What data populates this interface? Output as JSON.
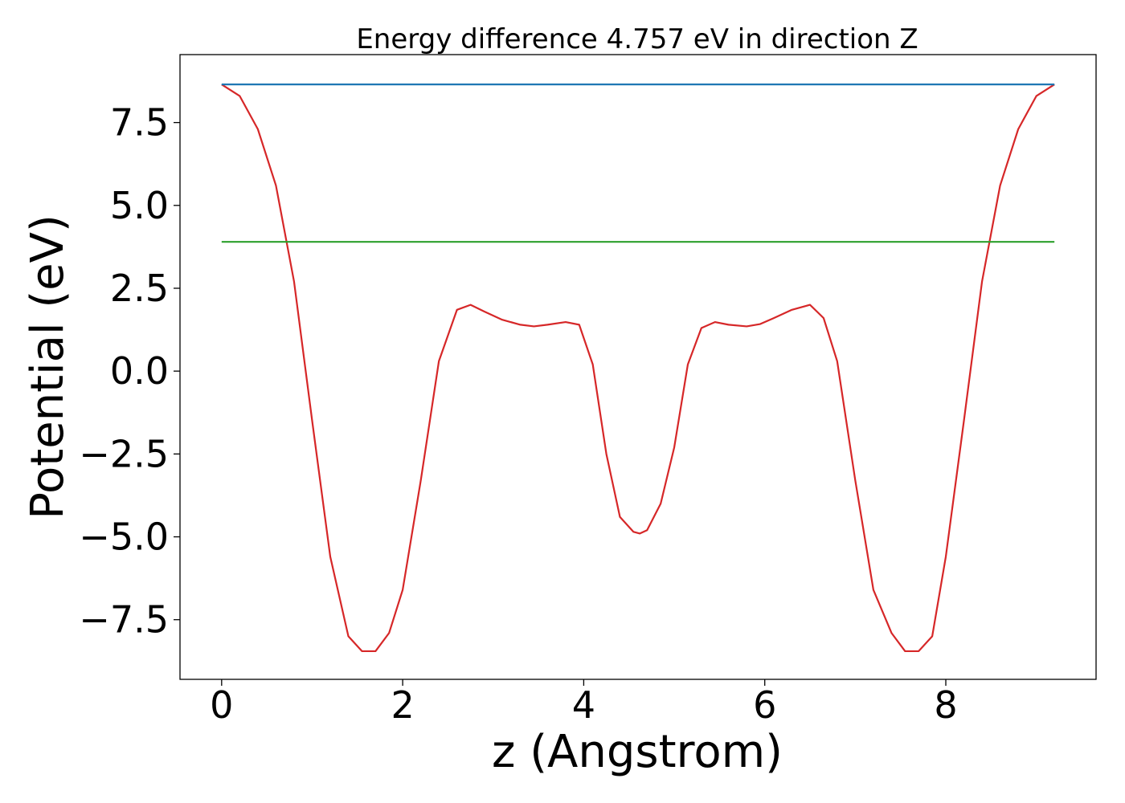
{
  "chart_data": {
    "type": "line",
    "title": "Energy difference 4.757 eV in direction Z",
    "xlabel": "z (Angstrom)",
    "ylabel": "Potential (eV)",
    "xlim": [
      -0.46,
      9.66
    ],
    "ylim": [
      -9.3,
      9.55
    ],
    "xticks": [
      0,
      2,
      4,
      6,
      8
    ],
    "xtick_labels": [
      "0",
      "2",
      "4",
      "6",
      "8"
    ],
    "yticks": [
      -7.5,
      -5.0,
      -2.5,
      0.0,
      2.5,
      5.0,
      7.5
    ],
    "ytick_labels": [
      "−7.5",
      "−5.0",
      "−2.5",
      "0.0",
      "2.5",
      "5.0",
      "7.5"
    ],
    "grid": false,
    "series": [
      {
        "color": "#d62728",
        "x": [
          0.0,
          0.2,
          0.4,
          0.6,
          0.8,
          1.0,
          1.2,
          1.4,
          1.55,
          1.7,
          1.85,
          2.0,
          2.2,
          2.4,
          2.6,
          2.75,
          2.9,
          3.1,
          3.3,
          3.45,
          3.6,
          3.8,
          3.95,
          4.1,
          4.25,
          4.4,
          4.55,
          4.62,
          4.7,
          4.85,
          5.0,
          5.15,
          5.3,
          5.45,
          5.6,
          5.8,
          5.95,
          6.1,
          6.3,
          6.5,
          6.65,
          6.8,
          7.0,
          7.2,
          7.4,
          7.55,
          7.7,
          7.85,
          8.0,
          8.2,
          8.4,
          8.6,
          8.8,
          9.0,
          9.2
        ],
        "y": [
          8.65,
          8.3,
          7.3,
          5.6,
          2.7,
          -1.5,
          -5.6,
          -8.0,
          -8.45,
          -8.45,
          -7.9,
          -6.6,
          -3.3,
          0.3,
          1.85,
          2.0,
          1.8,
          1.55,
          1.4,
          1.35,
          1.4,
          1.48,
          1.4,
          0.2,
          -2.5,
          -4.4,
          -4.85,
          -4.9,
          -4.8,
          -4.0,
          -2.3,
          0.2,
          1.3,
          1.48,
          1.4,
          1.35,
          1.42,
          1.6,
          1.85,
          2.0,
          1.6,
          0.3,
          -3.3,
          -6.6,
          -7.9,
          -8.45,
          -8.45,
          -8.0,
          -5.6,
          -1.5,
          2.7,
          5.6,
          7.3,
          8.3,
          8.65
        ]
      },
      {
        "color": "#1f77b4",
        "x": [
          0.0,
          9.2
        ],
        "y": [
          8.65,
          8.65
        ]
      },
      {
        "color": "#2ca02c",
        "x": [
          0.0,
          9.2
        ],
        "y": [
          3.9,
          3.9
        ]
      }
    ]
  }
}
